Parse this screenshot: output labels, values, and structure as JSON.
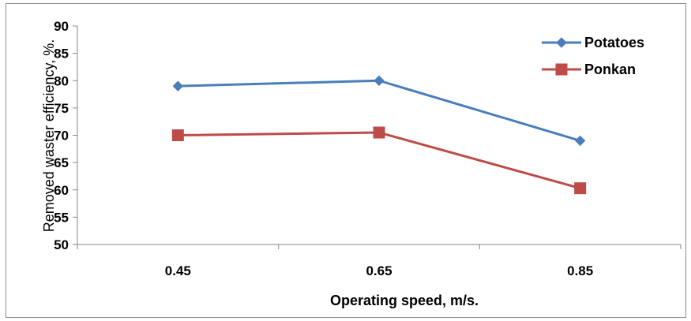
{
  "chart_data": {
    "type": "line",
    "categories": [
      "0.45",
      "0.65",
      "0.85"
    ],
    "series": [
      {
        "name": "Potatoes",
        "values": [
          79,
          80,
          69
        ],
        "color": "#4a7ebb",
        "marker": "diamond"
      },
      {
        "name": "Ponkan",
        "values": [
          70,
          70.5,
          60.3
        ],
        "color": "#be4b48",
        "marker": "square"
      }
    ],
    "title": "",
    "xlabel": "Operating speed, m/s.",
    "ylabel": "Removed waster efficiency, %.",
    "ylim": [
      50,
      90
    ],
    "yticks": [
      "50",
      "55",
      "60",
      "65",
      "70",
      "75",
      "80",
      "85",
      "90"
    ],
    "grid": false,
    "legend_position": "top-right"
  }
}
